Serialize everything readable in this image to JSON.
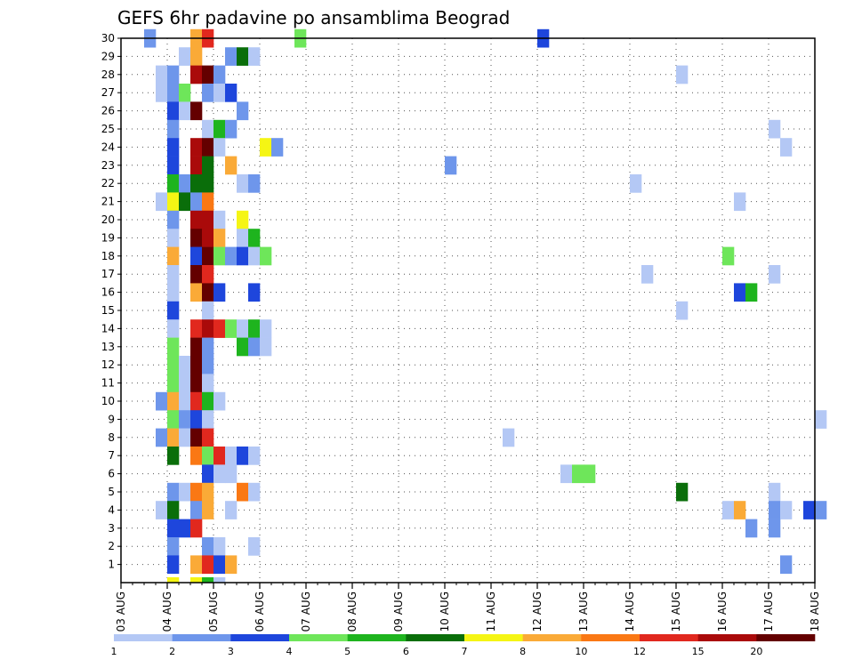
{
  "chart_data": {
    "type": "heatmap",
    "title": "GEFS 6hr padavine po ansamblima Beograd",
    "xlabel": "",
    "ylabel": "",
    "x_start_day": 3,
    "x_end_day": 18,
    "x_steps_per_day": 4,
    "x_tick_labels": [
      "03 AUG",
      "04 AUG",
      "05 AUG",
      "06 AUG",
      "07 AUG",
      "08 AUG",
      "09 AUG",
      "10 AUG",
      "11 AUG",
      "12 AUG",
      "13 AUG",
      "14 AUG",
      "15 AUG",
      "16 AUG",
      "17 AUG",
      "18 AUG"
    ],
    "y_range": [
      0,
      30
    ],
    "y_tick_labels": [
      "1",
      "2",
      "3",
      "4",
      "5",
      "6",
      "7",
      "8",
      "9",
      "10",
      "11",
      "12",
      "13",
      "14",
      "15",
      "16",
      "17",
      "18",
      "19",
      "20",
      "21",
      "22",
      "23",
      "24",
      "25",
      "26",
      "27",
      "28",
      "29",
      "30"
    ],
    "grid": true,
    "colorbar": {
      "colors": [
        "#b4c8f5",
        "#6e96eb",
        "#1e46dc",
        "#6ee65a",
        "#1eb41e",
        "#0a6e0a",
        "#f5f514",
        "#faaa37",
        "#fa7814",
        "#e1281e",
        "#aa0a0a",
        "#640000"
      ],
      "labels": [
        "1",
        "2",
        "3",
        "4",
        "5",
        "6",
        "7",
        "8",
        "10",
        "12",
        "15",
        "20"
      ]
    },
    "cells": [
      [
        30,
        2,
        2
      ],
      [
        30,
        6,
        8
      ],
      [
        30,
        7,
        10
      ],
      [
        30,
        15,
        4
      ],
      [
        30,
        36,
        3
      ],
      [
        29,
        5,
        1
      ],
      [
        29,
        6,
        8
      ],
      [
        29,
        9,
        2
      ],
      [
        29,
        10,
        6
      ],
      [
        29,
        11,
        1
      ],
      [
        28,
        3,
        1
      ],
      [
        28,
        4,
        2
      ],
      [
        28,
        6,
        11
      ],
      [
        28,
        7,
        12
      ],
      [
        28,
        8,
        2
      ],
      [
        28,
        48,
        1
      ],
      [
        27,
        3,
        1
      ],
      [
        27,
        4,
        2
      ],
      [
        27,
        5,
        4
      ],
      [
        27,
        7,
        2
      ],
      [
        27,
        8,
        1
      ],
      [
        27,
        9,
        3
      ],
      [
        26,
        4,
        3
      ],
      [
        26,
        5,
        1
      ],
      [
        26,
        6,
        12
      ],
      [
        26,
        10,
        2
      ],
      [
        25,
        4,
        2
      ],
      [
        25,
        7,
        1
      ],
      [
        25,
        8,
        5
      ],
      [
        25,
        9,
        2
      ],
      [
        25,
        56,
        1
      ],
      [
        24,
        4,
        3
      ],
      [
        24,
        6,
        11
      ],
      [
        24,
        7,
        12
      ],
      [
        24,
        8,
        1
      ],
      [
        24,
        12,
        7
      ],
      [
        24,
        13,
        2
      ],
      [
        24,
        57,
        1
      ],
      [
        23,
        4,
        3
      ],
      [
        23,
        6,
        11
      ],
      [
        23,
        7,
        6
      ],
      [
        23,
        9,
        8
      ],
      [
        23,
        28,
        2
      ],
      [
        22,
        4,
        5
      ],
      [
        22,
        5,
        2
      ],
      [
        22,
        6,
        6
      ],
      [
        22,
        7,
        6
      ],
      [
        22,
        10,
        1
      ],
      [
        22,
        11,
        2
      ],
      [
        22,
        44,
        1
      ],
      [
        21,
        3,
        1
      ],
      [
        21,
        4,
        7
      ],
      [
        21,
        5,
        6
      ],
      [
        21,
        6,
        2
      ],
      [
        21,
        7,
        9
      ],
      [
        21,
        53,
        1
      ],
      [
        20,
        4,
        2
      ],
      [
        20,
        6,
        11
      ],
      [
        20,
        7,
        11
      ],
      [
        20,
        8,
        1
      ],
      [
        20,
        10,
        7
      ],
      [
        19,
        4,
        1
      ],
      [
        19,
        6,
        12
      ],
      [
        19,
        7,
        11
      ],
      [
        19,
        8,
        8
      ],
      [
        19,
        10,
        1
      ],
      [
        19,
        11,
        5
      ],
      [
        18,
        4,
        8
      ],
      [
        18,
        6,
        3
      ],
      [
        18,
        7,
        12
      ],
      [
        18,
        8,
        4
      ],
      [
        18,
        9,
        2
      ],
      [
        18,
        10,
        3
      ],
      [
        18,
        11,
        1
      ],
      [
        18,
        12,
        4
      ],
      [
        18,
        52,
        4
      ],
      [
        17,
        4,
        1
      ],
      [
        17,
        6,
        12
      ],
      [
        17,
        7,
        10
      ],
      [
        17,
        45,
        1
      ],
      [
        17,
        56,
        1
      ],
      [
        16,
        4,
        1
      ],
      [
        16,
        6,
        8
      ],
      [
        16,
        7,
        12
      ],
      [
        16,
        8,
        3
      ],
      [
        16,
        11,
        3
      ],
      [
        16,
        53,
        3
      ],
      [
        16,
        54,
        5
      ],
      [
        15,
        4,
        3
      ],
      [
        15,
        7,
        1
      ],
      [
        15,
        48,
        1
      ],
      [
        14,
        4,
        1
      ],
      [
        14,
        6,
        10
      ],
      [
        14,
        7,
        11
      ],
      [
        14,
        8,
        10
      ],
      [
        14,
        9,
        4
      ],
      [
        14,
        10,
        1
      ],
      [
        14,
        11,
        5
      ],
      [
        14,
        12,
        1
      ],
      [
        13,
        4,
        4
      ],
      [
        13,
        6,
        12
      ],
      [
        13,
        7,
        2
      ],
      [
        13,
        10,
        5
      ],
      [
        13,
        11,
        2
      ],
      [
        13,
        12,
        1
      ],
      [
        12,
        4,
        4
      ],
      [
        12,
        5,
        1
      ],
      [
        12,
        6,
        12
      ],
      [
        12,
        7,
        2
      ],
      [
        11,
        4,
        4
      ],
      [
        11,
        5,
        1
      ],
      [
        11,
        6,
        12
      ],
      [
        11,
        7,
        1
      ],
      [
        10,
        3,
        2
      ],
      [
        10,
        4,
        8
      ],
      [
        10,
        5,
        1
      ],
      [
        10,
        6,
        10
      ],
      [
        10,
        7,
        5
      ],
      [
        10,
        8,
        1
      ],
      [
        9,
        4,
        4
      ],
      [
        9,
        5,
        2
      ],
      [
        9,
        6,
        3
      ],
      [
        9,
        7,
        1
      ],
      [
        9,
        60,
        1
      ],
      [
        8,
        3,
        2
      ],
      [
        8,
        4,
        8
      ],
      [
        8,
        5,
        1
      ],
      [
        8,
        6,
        12
      ],
      [
        8,
        7,
        10
      ],
      [
        8,
        33,
        1
      ],
      [
        7,
        4,
        6
      ],
      [
        7,
        6,
        9
      ],
      [
        7,
        7,
        4
      ],
      [
        7,
        8,
        10
      ],
      [
        7,
        9,
        1
      ],
      [
        7,
        10,
        3
      ],
      [
        7,
        11,
        1
      ],
      [
        6,
        7,
        3
      ],
      [
        6,
        8,
        1
      ],
      [
        6,
        9,
        1
      ],
      [
        6,
        38,
        1
      ],
      [
        6,
        39,
        4
      ],
      [
        6,
        40,
        4
      ],
      [
        5,
        4,
        2
      ],
      [
        5,
        5,
        1
      ],
      [
        5,
        6,
        9
      ],
      [
        5,
        7,
        8
      ],
      [
        5,
        10,
        9
      ],
      [
        5,
        11,
        1
      ],
      [
        5,
        48,
        6
      ],
      [
        5,
        56,
        1
      ],
      [
        4,
        3,
        1
      ],
      [
        4,
        4,
        6
      ],
      [
        4,
        6,
        2
      ],
      [
        4,
        7,
        8
      ],
      [
        4,
        9,
        1
      ],
      [
        4,
        52,
        1
      ],
      [
        4,
        53,
        8
      ],
      [
        4,
        56,
        2
      ],
      [
        4,
        57,
        1
      ],
      [
        4,
        59,
        3
      ],
      [
        4,
        60,
        2
      ],
      [
        3,
        4,
        3
      ],
      [
        3,
        5,
        3
      ],
      [
        3,
        6,
        10
      ],
      [
        3,
        54,
        2
      ],
      [
        3,
        56,
        2
      ],
      [
        2,
        4,
        2
      ],
      [
        2,
        7,
        2
      ],
      [
        2,
        8,
        1
      ],
      [
        2,
        11,
        1
      ],
      [
        1,
        4,
        3
      ],
      [
        1,
        6,
        8
      ],
      [
        1,
        7,
        10
      ],
      [
        1,
        8,
        3
      ],
      [
        1,
        9,
        8
      ],
      [
        1,
        57,
        2
      ]
    ],
    "bottom_strip": [
      [
        4,
        7
      ],
      [
        6,
        7
      ],
      [
        7,
        5
      ],
      [
        8,
        1
      ]
    ]
  }
}
